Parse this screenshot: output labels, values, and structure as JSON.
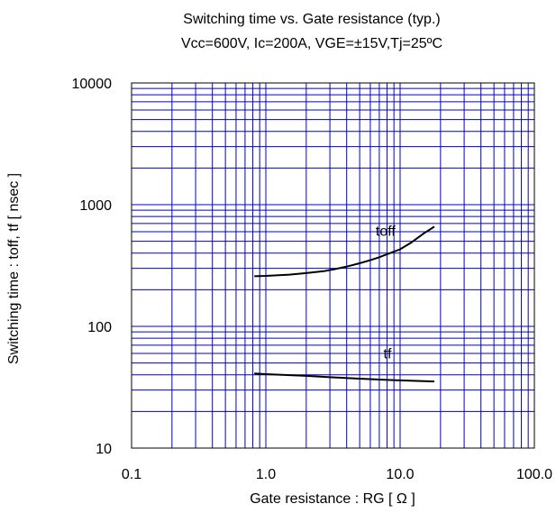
{
  "chart_data": {
    "type": "line",
    "title": "Switching time vs. Gate resistance (typ.)",
    "subtitle": "Vcc=600V, Ic=200A, VGE=±15V,Tj=25ºC",
    "xlabel": "Gate resistance : RG [ Ω ]",
    "ylabel": "Switching time : toff, tf [ nsec ]",
    "x_scale": "log",
    "y_scale": "log",
    "xlim": [
      0.1,
      100
    ],
    "ylim": [
      10,
      10000
    ],
    "x_ticks": [
      "0.1",
      "1.0",
      "10.0",
      "100.0"
    ],
    "y_ticks": [
      "10",
      "100",
      "1000",
      "10000"
    ],
    "grid": true,
    "colors": {
      "grid": "#0000cc",
      "line": "#000000"
    },
    "series": [
      {
        "name": "toff",
        "x": [
          0.82,
          1.0,
          1.5,
          2.0,
          2.7,
          3.3,
          4.0,
          5.0,
          6.0,
          7.0,
          8.0,
          10.0,
          12.0,
          15.0,
          18.0
        ],
        "y": [
          258,
          260,
          266,
          274,
          284,
          296,
          310,
          330,
          350,
          370,
          392,
          430,
          485,
          580,
          660
        ]
      },
      {
        "name": "tf",
        "x": [
          0.82,
          1.0,
          2.0,
          3.0,
          5.0,
          8.0,
          10.0,
          15.0,
          18.0
        ],
        "y": [
          41,
          40.5,
          39.2,
          38.2,
          37.2,
          36.3,
          36,
          35.5,
          35.3
        ]
      }
    ]
  }
}
